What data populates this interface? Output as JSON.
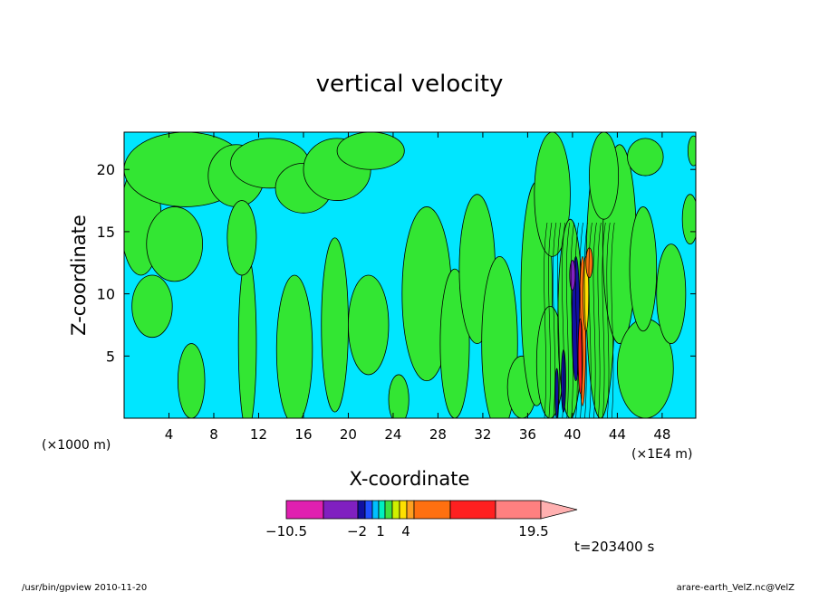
{
  "chart_data": {
    "type": "heatmap",
    "title": "vertical velocity",
    "xlabel": "X-coordinate",
    "ylabel": "Z-coordinate",
    "x_unit_left": "(×1000 m)",
    "x_unit_right": "(×1E4 m)",
    "x_ticks": [
      "4",
      "8",
      "12",
      "16",
      "20",
      "24",
      "28",
      "32",
      "36",
      "40",
      "44",
      "48"
    ],
    "y_ticks": [
      "5",
      "10",
      "15",
      "20"
    ],
    "xlim": [
      0,
      51
    ],
    "ylim": [
      0,
      23
    ],
    "colorbar": {
      "labels": [
        "−10.5",
        "−2",
        "1",
        "4",
        "19.5"
      ],
      "colors": [
        "#e020b0",
        "#8020c0",
        "#1010a0",
        "#2050ff",
        "#00c0ff",
        "#00f0c0",
        "#40e040",
        "#d0f000",
        "#ffe000",
        "#ffa020",
        "#ff7010",
        "#ff2020",
        "#ff8080",
        "#ffb0b0"
      ]
    },
    "fields": {
      "background_color": "#00e6ff",
      "positive_color": "#33e633",
      "strong_updraft_colors": [
        "#ff7010",
        "#ffe000",
        "#ff2020"
      ],
      "strong_downdraft_colors": [
        "#1010a0",
        "#8020c0"
      ]
    },
    "time_label": "t=203400 s"
  },
  "footer": {
    "left": "/usr/bin/gpview   2010-11-20",
    "right": "arare-earth_VelZ.nc@VelZ"
  }
}
